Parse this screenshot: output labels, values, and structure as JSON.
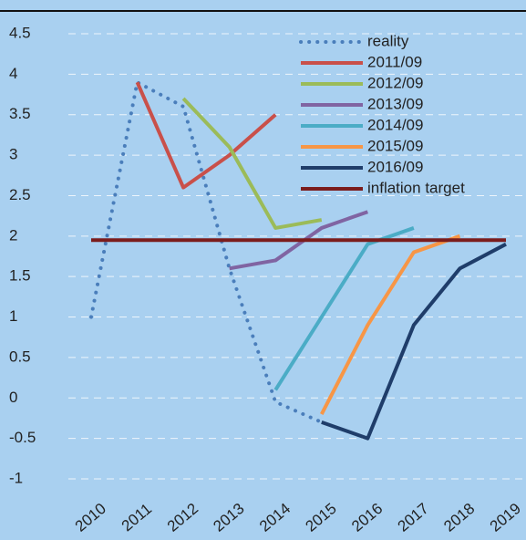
{
  "chart_data": {
    "type": "line",
    "categories": [
      "2010",
      "2011",
      "2012",
      "2013",
      "2014",
      "2015",
      "2016",
      "2017",
      "2018",
      "2019"
    ],
    "ylim": [
      -1,
      4.5
    ],
    "yticks": [
      -1,
      -0.5,
      0,
      0.5,
      1,
      1.5,
      2,
      2.5,
      3,
      3.5,
      4,
      4.5
    ],
    "grid": true,
    "legend": "upper right",
    "series": [
      {
        "name": "reality",
        "color": "#4a7ebb",
        "dash": "dotted",
        "values": [
          1,
          3.9,
          3.6,
          1.6,
          -0.05,
          -0.3,
          null,
          null,
          null,
          null
        ]
      },
      {
        "name": "2011/09",
        "color": "#c9504a",
        "values": [
          null,
          3.9,
          2.6,
          3.0,
          3.5,
          null,
          null,
          null,
          null,
          null
        ]
      },
      {
        "name": "2012/09",
        "color": "#9bbb59",
        "values": [
          null,
          null,
          3.7,
          3.1,
          2.1,
          2.2,
          null,
          null,
          null,
          null
        ]
      },
      {
        "name": "2013/09",
        "color": "#8064a2",
        "values": [
          null,
          null,
          null,
          1.6,
          1.7,
          2.1,
          2.3,
          null,
          null,
          null
        ]
      },
      {
        "name": "2014/09",
        "color": "#4bacc6",
        "values": [
          null,
          null,
          null,
          null,
          0.1,
          1.0,
          1.9,
          2.1,
          null,
          null
        ]
      },
      {
        "name": "2015/09",
        "color": "#f79646",
        "values": [
          null,
          null,
          null,
          null,
          null,
          -0.2,
          0.9,
          1.8,
          2.0,
          null
        ]
      },
      {
        "name": "2016/09",
        "color": "#1f3d6a",
        "values": [
          null,
          null,
          null,
          null,
          null,
          -0.3,
          -0.5,
          0.9,
          1.6,
          1.9
        ]
      },
      {
        "name": "inflation target",
        "color": "#7b1c1c",
        "values": [
          1.95,
          1.95,
          1.95,
          1.95,
          1.95,
          1.95,
          1.95,
          1.95,
          1.95,
          1.95
        ]
      }
    ]
  }
}
